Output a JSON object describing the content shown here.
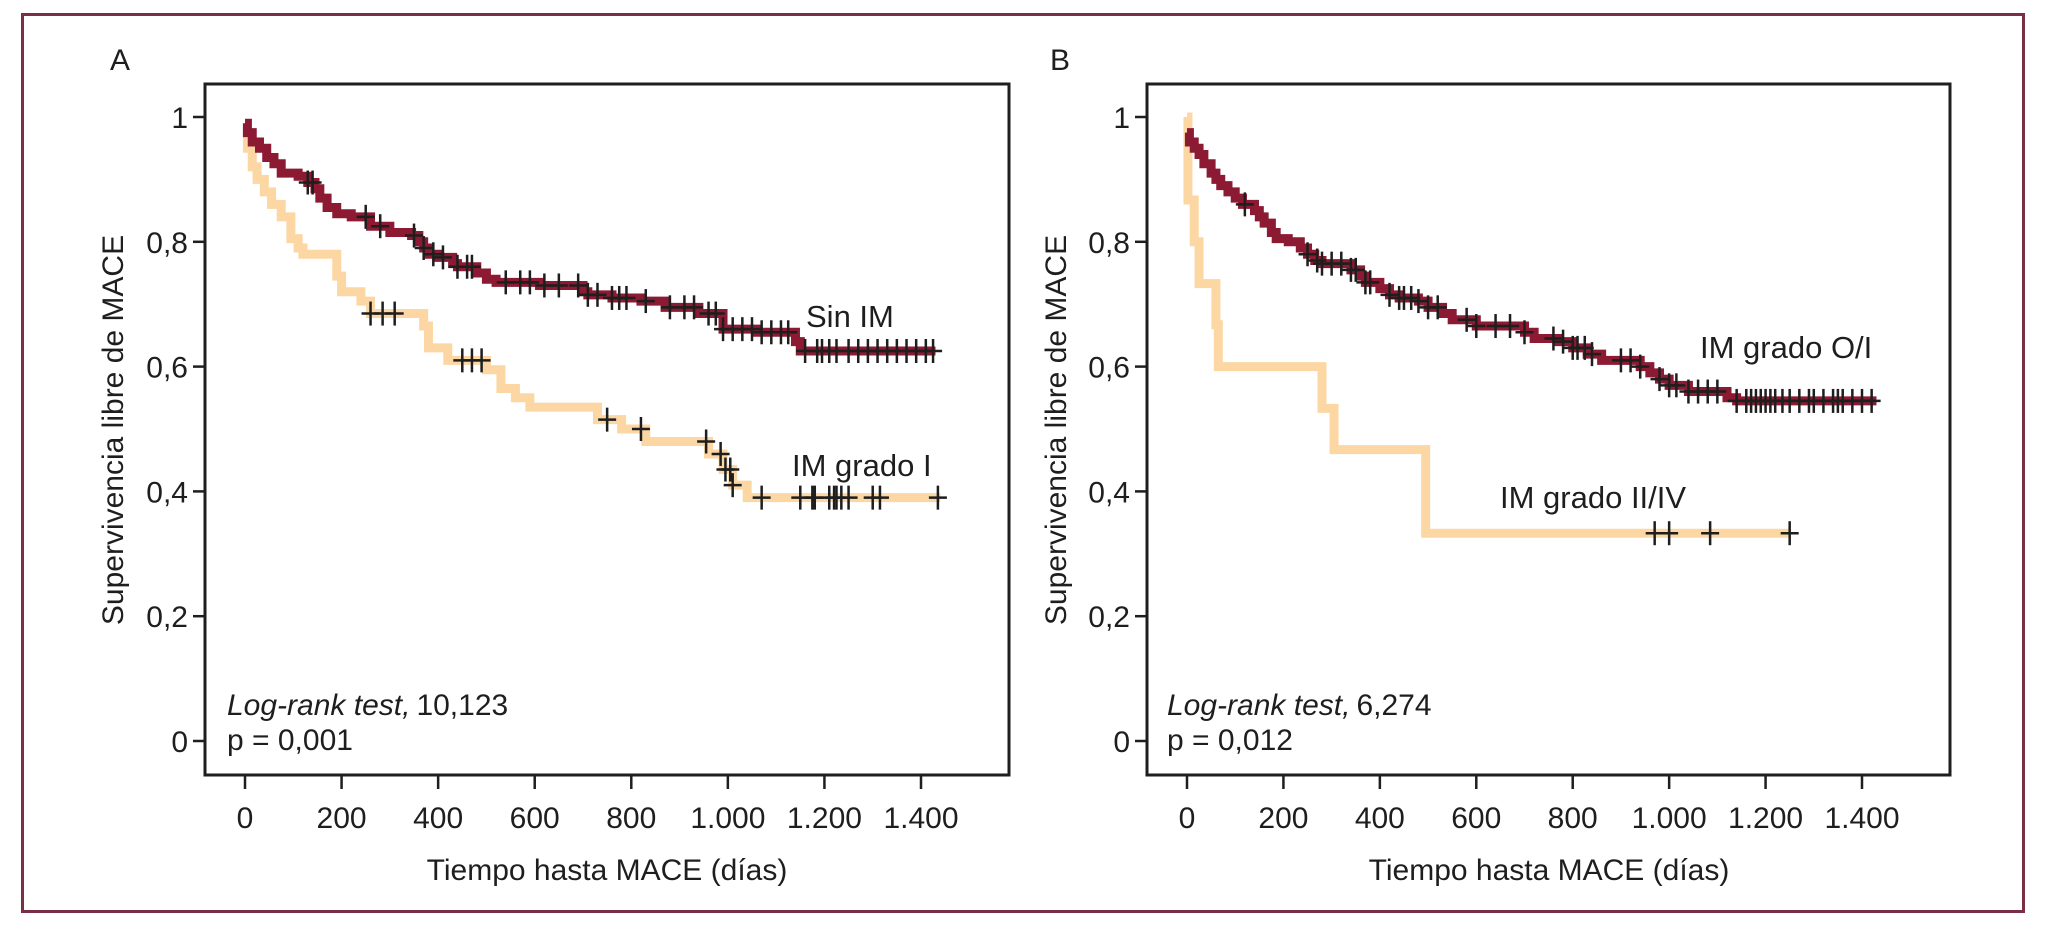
{
  "figure": {
    "frame_color": "#7a2f45"
  },
  "chart_data": [
    {
      "type": "line",
      "subtype": "kaplan-meier",
      "panel_label": "A",
      "title": "",
      "xlabel": "Tiempo hasta MACE (días)",
      "ylabel": "Supervivencia libre de MACE",
      "xlim": [
        -80,
        1560
      ],
      "ylim": [
        -0.055,
        1.055
      ],
      "x_ticks": [
        0,
        200,
        400,
        600,
        800,
        1000,
        1200,
        1400
      ],
      "x_tick_labels": [
        "0",
        "200",
        "400",
        "600",
        "800",
        "1.000",
        "1.200",
        "1.400"
      ],
      "y_ticks": [
        0,
        0.2,
        0.4,
        0.6,
        0.8,
        1
      ],
      "y_tick_labels": [
        "0",
        "0,2",
        "0,4",
        "0,6",
        "0,8",
        "1"
      ],
      "grid": false,
      "legend": "none (inline curve labels)",
      "annotation": {
        "test_label": "Log-rank test,",
        "statistic": "10,123",
        "p_value": "p = 0,001"
      },
      "series": [
        {
          "name": "Sin IM",
          "color": "#8b1a32",
          "steps": [
            [
              0,
              0.99
            ],
            [
              5,
              0.975
            ],
            [
              15,
              0.96
            ],
            [
              30,
              0.95
            ],
            [
              45,
              0.935
            ],
            [
              60,
              0.925
            ],
            [
              75,
              0.91
            ],
            [
              110,
              0.905
            ],
            [
              130,
              0.895
            ],
            [
              145,
              0.885
            ],
            [
              155,
              0.87
            ],
            [
              170,
              0.855
            ],
            [
              190,
              0.845
            ],
            [
              220,
              0.84
            ],
            [
              260,
              0.825
            ],
            [
              300,
              0.815
            ],
            [
              345,
              0.81
            ],
            [
              360,
              0.8
            ],
            [
              370,
              0.79
            ],
            [
              380,
              0.78
            ],
            [
              400,
              0.775
            ],
            [
              430,
              0.765
            ],
            [
              440,
              0.76
            ],
            [
              480,
              0.75
            ],
            [
              500,
              0.74
            ],
            [
              520,
              0.735
            ],
            [
              610,
              0.73
            ],
            [
              700,
              0.72
            ],
            [
              710,
              0.715
            ],
            [
              760,
              0.71
            ],
            [
              820,
              0.705
            ],
            [
              870,
              0.695
            ],
            [
              940,
              0.685
            ],
            [
              990,
              0.66
            ],
            [
              1060,
              0.655
            ],
            [
              1140,
              0.64
            ],
            [
              1150,
              0.625
            ],
            [
              1430,
              0.625
            ]
          ],
          "censor_times": [
            130,
            140,
            250,
            280,
            350,
            370,
            390,
            410,
            440,
            460,
            470,
            540,
            570,
            590,
            620,
            650,
            690,
            710,
            730,
            760,
            775,
            790,
            830,
            880,
            910,
            930,
            960,
            975,
            990,
            1010,
            1030,
            1050,
            1070,
            1090,
            1110,
            1125,
            1160,
            1185,
            1195,
            1210,
            1225,
            1250,
            1270,
            1290,
            1310,
            1330,
            1350,
            1370,
            1390,
            1410,
            1425
          ]
        },
        {
          "name": "IM grado I",
          "color": "#fcd7a4",
          "steps": [
            [
              0,
              0.975
            ],
            [
              5,
              0.95
            ],
            [
              15,
              0.92
            ],
            [
              25,
              0.9
            ],
            [
              40,
              0.88
            ],
            [
              55,
              0.86
            ],
            [
              75,
              0.84
            ],
            [
              95,
              0.805
            ],
            [
              110,
              0.79
            ],
            [
              120,
              0.78
            ],
            [
              190,
              0.745
            ],
            [
              200,
              0.72
            ],
            [
              240,
              0.705
            ],
            [
              260,
              0.685
            ],
            [
              370,
              0.665
            ],
            [
              380,
              0.63
            ],
            [
              420,
              0.61
            ],
            [
              500,
              0.595
            ],
            [
              530,
              0.565
            ],
            [
              560,
              0.55
            ],
            [
              590,
              0.535
            ],
            [
              730,
              0.515
            ],
            [
              780,
              0.5
            ],
            [
              830,
              0.48
            ],
            [
              960,
              0.46
            ],
            [
              990,
              0.435
            ],
            [
              1010,
              0.41
            ],
            [
              1040,
              0.39
            ],
            [
              1440,
              0.39
            ]
          ],
          "censor_times": [
            260,
            285,
            310,
            450,
            470,
            490,
            750,
            820,
            955,
            985,
            995,
            1005,
            1010,
            1070,
            1150,
            1175,
            1180,
            1210,
            1220,
            1225,
            1235,
            1250,
            1300,
            1315,
            1435
          ]
        }
      ],
      "curve_labels": [
        "Sin IM",
        "IM grado I"
      ]
    },
    {
      "type": "line",
      "subtype": "kaplan-meier",
      "panel_label": "B",
      "title": "",
      "xlabel": "Tiempo hasta MACE (días)",
      "ylabel": "Supervivencia libre de MACE",
      "xlim": [
        -80,
        1560
      ],
      "ylim": [
        -0.055,
        1.055
      ],
      "x_ticks": [
        0,
        200,
        400,
        600,
        800,
        1000,
        1200,
        1400
      ],
      "x_tick_labels": [
        "0",
        "200",
        "400",
        "600",
        "800",
        "1.000",
        "1.200",
        "1.400"
      ],
      "y_ticks": [
        0,
        0.2,
        0.4,
        0.6,
        0.8,
        1
      ],
      "y_tick_labels": [
        "0",
        "0,2",
        "0,4",
        "0,6",
        "0,8",
        "1"
      ],
      "grid": false,
      "legend": "none (inline curve labels)",
      "annotation": {
        "test_label": "Log-rank test,",
        "statistic": "6,274",
        "p_value": "p = 0,012"
      },
      "series": [
        {
          "name": "IM grado O/I",
          "color": "#8b1a32",
          "steps": [
            [
              0,
              0.975
            ],
            [
              5,
              0.96
            ],
            [
              15,
              0.95
            ],
            [
              25,
              0.94
            ],
            [
              35,
              0.925
            ],
            [
              50,
              0.91
            ],
            [
              60,
              0.9
            ],
            [
              70,
              0.89
            ],
            [
              85,
              0.88
            ],
            [
              100,
              0.87
            ],
            [
              115,
              0.86
            ],
            [
              140,
              0.85
            ],
            [
              150,
              0.84
            ],
            [
              160,
              0.83
            ],
            [
              175,
              0.815
            ],
            [
              185,
              0.805
            ],
            [
              210,
              0.8
            ],
            [
              235,
              0.79
            ],
            [
              250,
              0.78
            ],
            [
              265,
              0.77
            ],
            [
              280,
              0.765
            ],
            [
              340,
              0.755
            ],
            [
              360,
              0.745
            ],
            [
              370,
              0.735
            ],
            [
              400,
              0.725
            ],
            [
              420,
              0.715
            ],
            [
              440,
              0.71
            ],
            [
              480,
              0.705
            ],
            [
              500,
              0.695
            ],
            [
              530,
              0.685
            ],
            [
              550,
              0.675
            ],
            [
              600,
              0.665
            ],
            [
              700,
              0.655
            ],
            [
              720,
              0.645
            ],
            [
              770,
              0.64
            ],
            [
              800,
              0.63
            ],
            [
              830,
              0.62
            ],
            [
              860,
              0.61
            ],
            [
              940,
              0.6
            ],
            [
              960,
              0.59
            ],
            [
              980,
              0.58
            ],
            [
              1000,
              0.57
            ],
            [
              1040,
              0.56
            ],
            [
              1120,
              0.55
            ],
            [
              1140,
              0.545
            ],
            [
              1430,
              0.545
            ]
          ],
          "censor_times": [
            120,
            250,
            270,
            280,
            300,
            320,
            340,
            350,
            370,
            380,
            420,
            440,
            450,
            465,
            480,
            500,
            520,
            580,
            600,
            640,
            670,
            700,
            760,
            780,
            800,
            810,
            825,
            840,
            900,
            920,
            940,
            980,
            1000,
            1015,
            1040,
            1060,
            1080,
            1100,
            1140,
            1160,
            1170,
            1180,
            1190,
            1200,
            1210,
            1220,
            1235,
            1250,
            1270,
            1290,
            1300,
            1320,
            1340,
            1350,
            1360,
            1380,
            1400,
            1420
          ]
        },
        {
          "name": "IM grado II/IV",
          "color": "#fcd7a4",
          "steps": [
            [
              0,
              1.0
            ],
            [
              2,
              0.867
            ],
            [
              15,
              0.8
            ],
            [
              25,
              0.733
            ],
            [
              60,
              0.667
            ],
            [
              65,
              0.6
            ],
            [
              280,
              0.533
            ],
            [
              305,
              0.467
            ],
            [
              495,
              0.333
            ],
            [
              1250,
              0.333
            ]
          ],
          "censor_times": [
            970,
            1000,
            1085,
            1250
          ]
        }
      ],
      "curve_labels": [
        "IM grado O/I",
        "IM grado II/IV"
      ]
    }
  ]
}
